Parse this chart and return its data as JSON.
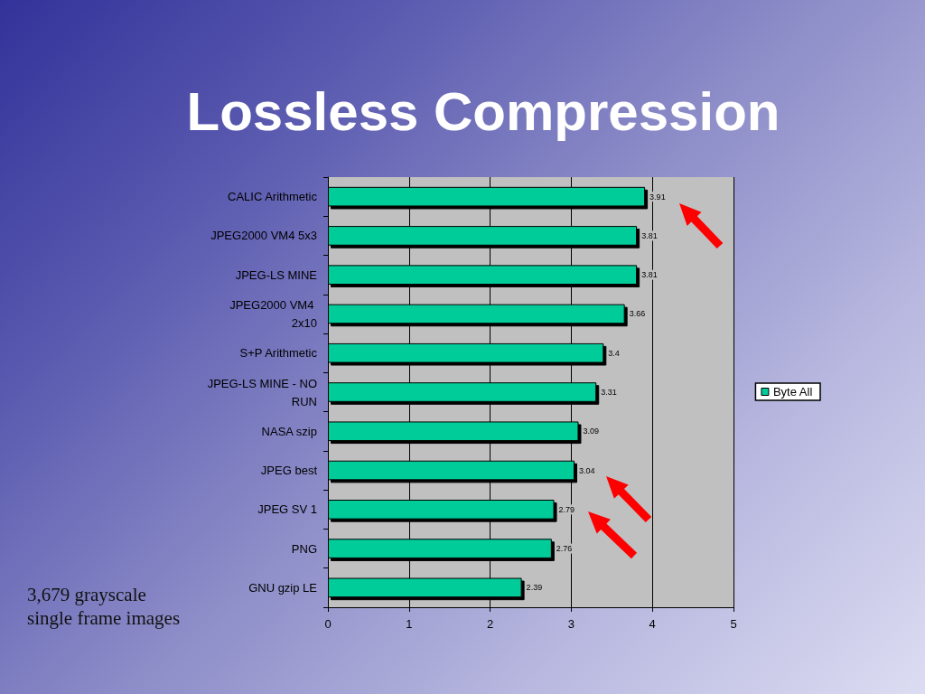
{
  "chart_data": {
    "type": "bar",
    "orientation": "horizontal",
    "title": "Lossless Compression",
    "categories": [
      "CALIC Arithmetic",
      "JPEG2000 VM4 5x3",
      "JPEG-LS MINE",
      "JPEG2000 VM4 2x10",
      "S+P Arithmetic",
      "JPEG-LS MINE - NO RUN",
      "NASA szip",
      "JPEG best",
      "JPEG SV 1",
      "PNG",
      "GNU gzip LE"
    ],
    "series": [
      {
        "name": "Byte All",
        "color": "#00cc99",
        "values": [
          3.91,
          3.81,
          3.81,
          3.66,
          3.4,
          3.31,
          3.09,
          3.04,
          2.79,
          2.76,
          2.39
        ]
      }
    ],
    "xlim": [
      0,
      5
    ],
    "xticks": [
      0,
      1,
      2,
      3,
      4,
      5
    ],
    "grid": "x",
    "legend": "right",
    "data_labels": true,
    "annotations": [
      "3,679 grayscale single frame images"
    ]
  }
}
